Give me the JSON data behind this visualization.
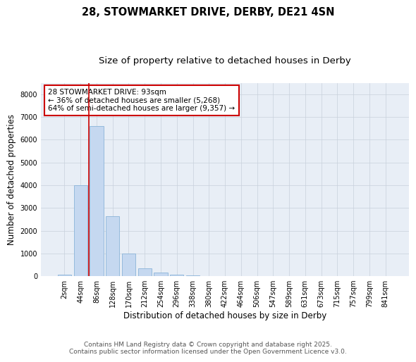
{
  "title_line1": "28, STOWMARKET DRIVE, DERBY, DE21 4SN",
  "title_line2": "Size of property relative to detached houses in Derby",
  "xlabel": "Distribution of detached houses by size in Derby",
  "ylabel": "Number of detached properties",
  "categories": [
    "2sqm",
    "44sqm",
    "86sqm",
    "128sqm",
    "170sqm",
    "212sqm",
    "254sqm",
    "296sqm",
    "338sqm",
    "380sqm",
    "422sqm",
    "464sqm",
    "506sqm",
    "547sqm",
    "589sqm",
    "631sqm",
    "673sqm",
    "715sqm",
    "757sqm",
    "799sqm",
    "841sqm"
  ],
  "bar_values": [
    50,
    4000,
    6600,
    2650,
    1000,
    340,
    150,
    80,
    40,
    15,
    5,
    2,
    1,
    0,
    0,
    0,
    0,
    0,
    0,
    0,
    0
  ],
  "bar_color": "#c5d8f0",
  "bar_edge_color": "#8ab4d8",
  "bar_width": 0.85,
  "vline_x": 1.5,
  "vline_color": "#cc0000",
  "annotation_text": "28 STOWMARKET DRIVE: 93sqm\n← 36% of detached houses are smaller (5,268)\n64% of semi-detached houses are larger (9,357) →",
  "annotation_box_color": "white",
  "annotation_box_edge_color": "#cc0000",
  "ylim": [
    0,
    8500
  ],
  "yticks": [
    0,
    1000,
    2000,
    3000,
    4000,
    5000,
    6000,
    7000,
    8000
  ],
  "grid_color": "#c8d0dc",
  "background_color": "#e8eef6",
  "footnote1": "Contains HM Land Registry data © Crown copyright and database right 2025.",
  "footnote2": "Contains public sector information licensed under the Open Government Licence v3.0.",
  "title_fontsize": 10.5,
  "subtitle_fontsize": 9.5,
  "tick_fontsize": 7,
  "label_fontsize": 8.5,
  "annotation_fontsize": 7.5,
  "footnote_fontsize": 6.5
}
